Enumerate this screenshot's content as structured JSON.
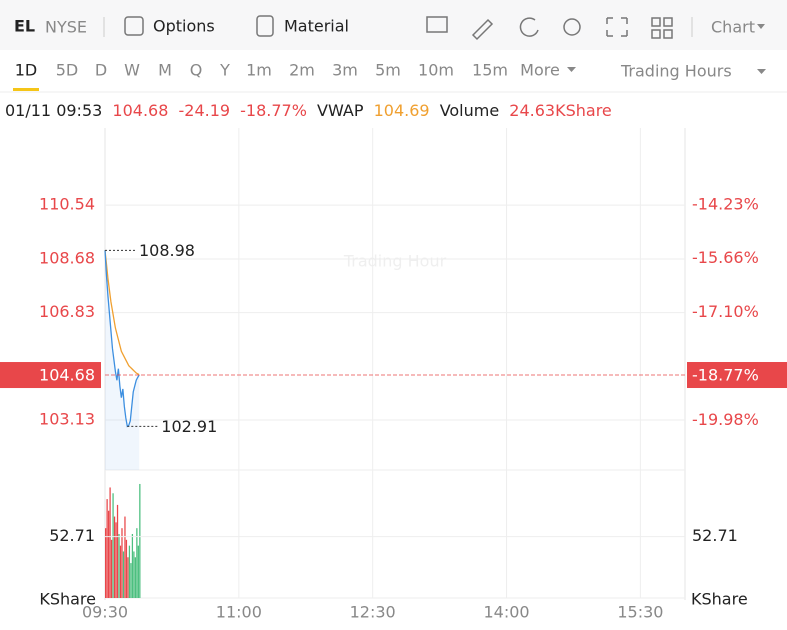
{
  "toolbar": {
    "symbol": "EL",
    "exchange": "NYSE",
    "buttons": [
      "Options",
      "Material"
    ],
    "chart_menu": "Chart"
  },
  "periods": {
    "items": [
      "1D",
      "5D",
      "D",
      "W",
      "M",
      "Q",
      "Y",
      "1m",
      "2m",
      "3m",
      "5m",
      "10m",
      "15m",
      "More"
    ],
    "selected": 0,
    "session_menu": "Trading Hours"
  },
  "quote": {
    "time": "01/11 09:53",
    "price": "104.68",
    "change": "-24.19",
    "change_pct": "-18.77%",
    "vwap_label": "VWAP",
    "vwap": "104.69",
    "volume_label": "Volume",
    "volume": "24.63KShare"
  },
  "chart_data": {
    "type": "line",
    "watermark": "Trading Hour",
    "x": [
      570,
      571,
      572,
      573,
      574,
      575,
      576,
      577,
      578,
      579,
      580,
      581,
      582,
      583,
      584,
      585,
      586,
      587,
      588,
      589,
      590,
      591,
      592,
      593
    ],
    "xlim": [
      570,
      960
    ],
    "xticks": [
      {
        "value": 570,
        "label": "09:30"
      },
      {
        "value": 660,
        "label": "11:00"
      },
      {
        "value": 750,
        "label": "12:30"
      },
      {
        "value": 840,
        "label": "14:00"
      },
      {
        "value": 930,
        "label": "15:30"
      }
    ],
    "ylim": [
      101.75,
      112.44
    ],
    "yticks": [
      103.13,
      106.83,
      108.68,
      110.54
    ],
    "y2lim": [
      -21.04,
      -12.76
    ],
    "y2ticks": [
      {
        "value": -19.98,
        "label": "-19.98%"
      },
      {
        "value": -17.1,
        "label": "-17.10%"
      },
      {
        "value": -15.66,
        "label": "-15.66%"
      },
      {
        "value": -14.23,
        "label": "-14.23%"
      }
    ],
    "grid": true,
    "series": [
      {
        "name": "Price",
        "color": "#3d8fe0",
        "values": [
          108.98,
          108.1,
          107.4,
          106.8,
          106.2,
          105.6,
          105.2,
          104.8,
          104.5,
          104.9,
          104.3,
          103.9,
          104.2,
          103.6,
          103.2,
          102.91,
          102.95,
          103.1,
          103.6,
          104.1,
          104.3,
          104.5,
          104.6,
          104.68
        ]
      },
      {
        "name": "VWAP",
        "color": "#f0a030",
        "values": [
          108.98,
          108.5,
          108.0,
          107.6,
          107.2,
          106.9,
          106.6,
          106.3,
          106.1,
          105.9,
          105.7,
          105.5,
          105.4,
          105.3,
          105.2,
          105.1,
          105.0,
          104.95,
          104.9,
          104.85,
          104.8,
          104.75,
          104.72,
          104.69
        ]
      }
    ],
    "current": {
      "price": {
        "value": 104.68,
        "label": "104.68"
      },
      "pct": {
        "value": -18.77,
        "label": "-18.77%"
      },
      "color": "#e8474a"
    },
    "annotations": [
      {
        "x": 570,
        "y": 108.98
      },
      {
        "x": 585,
        "y": 102.91
      }
    ],
    "volume": {
      "values": [
        60,
        85,
        75,
        95,
        50,
        90,
        70,
        65,
        80,
        55,
        45,
        60,
        40,
        70,
        50,
        35,
        45,
        30,
        55,
        40,
        35,
        60,
        45,
        98
      ],
      "colors": [
        "#e8474a",
        "#e8474a",
        "#e8474a",
        "#e8474a",
        "#e8474a",
        "#4cbf7f",
        "#e8474a",
        "#e8474a",
        "#e8474a",
        "#4cbf7f",
        "#e8474a",
        "#e8474a",
        "#4cbf7f",
        "#e8474a",
        "#e8474a",
        "#e8474a",
        "#4cbf7f",
        "#4cbf7f",
        "#4cbf7f",
        "#4cbf7f",
        "#4cbf7f",
        "#4cbf7f",
        "#4cbf7f",
        "#4cbf7f"
      ],
      "ylim": [
        0,
        110
      ],
      "yticks": [
        52.71
      ],
      "unit": "KShare"
    }
  }
}
